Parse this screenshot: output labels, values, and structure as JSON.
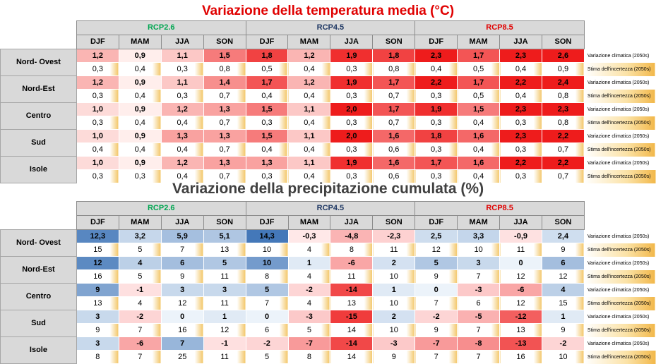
{
  "colors": {
    "rcp26": "#00a651",
    "rcp45": "#1f3864",
    "rcp85": "#e00000"
  },
  "temperature": {
    "title": "Variazione della temperatura media (°C)",
    "scenarios": [
      "RCP2.6",
      "RCP4.5",
      "RCP8.5"
    ],
    "seasons": [
      "DJF",
      "MAM",
      "JJA",
      "SON"
    ],
    "label_change": "Variazione climatica (2050s)",
    "label_uncertainty": "Stima dell'incertezza (2050s)",
    "rows": [
      {
        "region": "Nord- Ovest",
        "change": [
          "1,2",
          "0,9",
          "1,1",
          "1,5",
          "1,8",
          "1,2",
          "1,9",
          "1,8",
          "2,3",
          "1,7",
          "2,3",
          "2,6"
        ],
        "uncertainty": [
          "0,3",
          "0,4",
          "0,3",
          "0,8",
          "0,5",
          "0,4",
          "0,3",
          "0,8",
          "0,4",
          "0,5",
          "0,4",
          "0,9"
        ]
      },
      {
        "region": "Nord-Est",
        "change": [
          "1,2",
          "0,9",
          "1,1",
          "1,4",
          "1,7",
          "1,2",
          "1,9",
          "1,7",
          "2,2",
          "1,7",
          "2,2",
          "2,4"
        ],
        "uncertainty": [
          "0,3",
          "0,4",
          "0,3",
          "0,7",
          "0,4",
          "0,4",
          "0,3",
          "0,7",
          "0,3",
          "0,5",
          "0,4",
          "0,8"
        ]
      },
      {
        "region": "Centro",
        "change": [
          "1,0",
          "0,9",
          "1,2",
          "1,3",
          "1,5",
          "1,1",
          "2,0",
          "1,7",
          "1,9",
          "1,5",
          "2,3",
          "2,3"
        ],
        "uncertainty": [
          "0,3",
          "0,4",
          "0,4",
          "0,7",
          "0,3",
          "0,4",
          "0,3",
          "0,7",
          "0,3",
          "0,4",
          "0,3",
          "0,8"
        ]
      },
      {
        "region": "Sud",
        "change": [
          "1,0",
          "0,9",
          "1,3",
          "1,3",
          "1,5",
          "1,1",
          "2,0",
          "1,6",
          "1,8",
          "1,6",
          "2,3",
          "2,2"
        ],
        "uncertainty": [
          "0,4",
          "0,4",
          "0,4",
          "0,7",
          "0,4",
          "0,4",
          "0,3",
          "0,6",
          "0,3",
          "0,4",
          "0,3",
          "0,7"
        ]
      },
      {
        "region": "Isole",
        "change": [
          "1,0",
          "0,9",
          "1,2",
          "1,3",
          "1,3",
          "1,1",
          "1,9",
          "1,6",
          "1,7",
          "1,6",
          "2,2",
          "2,2"
        ],
        "uncertainty": [
          "0,3",
          "0,3",
          "0,4",
          "0,7",
          "0,3",
          "0,4",
          "0,3",
          "0,6",
          "0,3",
          "0,4",
          "0,3",
          "0,7"
        ]
      }
    ]
  },
  "precipitation": {
    "title": "Variazione della precipitazione cumulata (%)",
    "scenarios": [
      "RCP2.6",
      "RCP4.5",
      "RCP8.5"
    ],
    "seasons": [
      "DJF",
      "MAM",
      "JJA",
      "SON"
    ],
    "label_change": "Variazione climatica (2050s)",
    "label_uncertainty": "Stima dell'incertezza (2050s)",
    "rows": [
      {
        "region": "Nord- Ovest",
        "change": [
          "12,3",
          "3,2",
          "5,9",
          "5,1",
          "14,3",
          "-0,3",
          "-4,8",
          "-2,3",
          "2,5",
          "3,3",
          "-0,9",
          "2,4"
        ],
        "uncertainty": [
          "15",
          "5",
          "7",
          "13",
          "10",
          "4",
          "8",
          "11",
          "12",
          "10",
          "11",
          "9"
        ]
      },
      {
        "region": "Nord-Est",
        "change": [
          "12",
          "4",
          "6",
          "5",
          "10",
          "1",
          "-6",
          "2",
          "5",
          "3",
          "0",
          "6"
        ],
        "uncertainty": [
          "16",
          "5",
          "9",
          "11",
          "8",
          "4",
          "11",
          "10",
          "9",
          "7",
          "12",
          "12"
        ]
      },
      {
        "region": "Centro",
        "change": [
          "9",
          "-1",
          "3",
          "3",
          "5",
          "-2",
          "-14",
          "1",
          "0",
          "-3",
          "-6",
          "4"
        ],
        "uncertainty": [
          "13",
          "4",
          "12",
          "11",
          "7",
          "4",
          "13",
          "10",
          "7",
          "6",
          "12",
          "15"
        ]
      },
      {
        "region": "Sud",
        "change": [
          "3",
          "-2",
          "0",
          "1",
          "0",
          "-3",
          "-15",
          "2",
          "-2",
          "-5",
          "-12",
          "1"
        ],
        "uncertainty": [
          "9",
          "7",
          "16",
          "12",
          "6",
          "5",
          "14",
          "10",
          "9",
          "7",
          "13",
          "9"
        ]
      },
      {
        "region": "Isole",
        "change": [
          "3",
          "-6",
          "7",
          "-1",
          "-2",
          "-7",
          "-14",
          "-3",
          "-7",
          "-8",
          "-13",
          "-2"
        ],
        "uncertainty": [
          "8",
          "7",
          "25",
          "11",
          "5",
          "8",
          "14",
          "9",
          "7",
          "7",
          "16",
          "10"
        ]
      }
    ]
  }
}
